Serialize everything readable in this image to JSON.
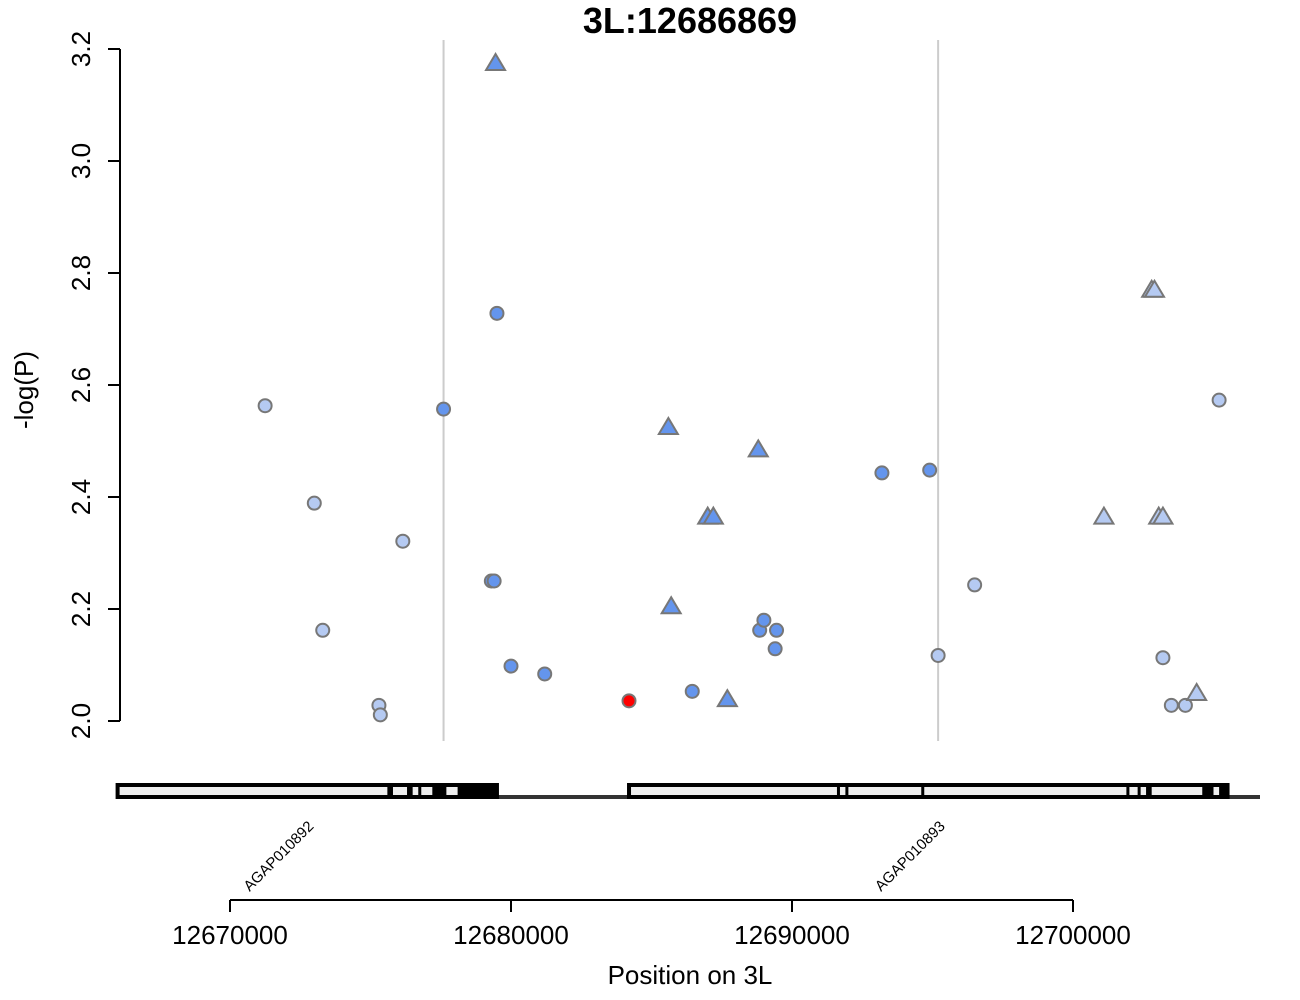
{
  "chart_data": {
    "type": "scatter",
    "title": "3L:12686869",
    "xlabel": "Position on 3L",
    "ylabel": "-log(P)",
    "xlim": [
      12665000,
      12708000
    ],
    "ylim": [
      2.0,
      3.2
    ],
    "x_ticks": [
      12670000,
      12680000,
      12690000,
      12700000
    ],
    "x_tick_labels": [
      "12670000",
      "12680000",
      "12690000",
      "12700000"
    ],
    "y_ticks": [
      2.0,
      2.2,
      2.4,
      2.6,
      2.8,
      3.0,
      3.2
    ],
    "y_tick_labels": [
      "2.0",
      "2.2",
      "2.4",
      "2.6",
      "2.8",
      "3.0",
      "3.2"
    ],
    "grid": false,
    "colors": {
      "dark_blue": "#6495ed",
      "light_blue": "#b5caf2",
      "lead": "#ff0000",
      "outline": "#777777"
    },
    "points": [
      {
        "x": 12671250,
        "y": 2.563,
        "shape": "circle",
        "color": "light_blue"
      },
      {
        "x": 12673000,
        "y": 2.389,
        "shape": "circle",
        "color": "light_blue"
      },
      {
        "x": 12673300,
        "y": 2.162,
        "shape": "circle",
        "color": "light_blue"
      },
      {
        "x": 12675300,
        "y": 2.028,
        "shape": "circle",
        "color": "light_blue"
      },
      {
        "x": 12675350,
        "y": 2.011,
        "shape": "circle",
        "color": "light_blue"
      },
      {
        "x": 12676150,
        "y": 2.321,
        "shape": "circle",
        "color": "light_blue"
      },
      {
        "x": 12677600,
        "y": 2.557,
        "shape": "circle",
        "color": "dark_blue"
      },
      {
        "x": 12679300,
        "y": 2.25,
        "shape": "circle",
        "color": "dark_blue"
      },
      {
        "x": 12679400,
        "y": 2.25,
        "shape": "circle",
        "color": "dark_blue"
      },
      {
        "x": 12679450,
        "y": 3.175,
        "shape": "triangle",
        "color": "dark_blue"
      },
      {
        "x": 12679500,
        "y": 2.728,
        "shape": "circle",
        "color": "dark_blue"
      },
      {
        "x": 12680000,
        "y": 2.098,
        "shape": "circle",
        "color": "dark_blue"
      },
      {
        "x": 12681200,
        "y": 2.084,
        "shape": "circle",
        "color": "dark_blue"
      },
      {
        "x": 12684200,
        "y": 2.036,
        "shape": "circle",
        "color": "lead"
      },
      {
        "x": 12685600,
        "y": 2.525,
        "shape": "triangle",
        "color": "dark_blue"
      },
      {
        "x": 12685700,
        "y": 2.205,
        "shape": "triangle",
        "color": "dark_blue"
      },
      {
        "x": 12686450,
        "y": 2.053,
        "shape": "circle",
        "color": "dark_blue"
      },
      {
        "x": 12687000,
        "y": 2.365,
        "shape": "triangle",
        "color": "dark_blue"
      },
      {
        "x": 12687200,
        "y": 2.365,
        "shape": "triangle",
        "color": "dark_blue"
      },
      {
        "x": 12687700,
        "y": 2.039,
        "shape": "triangle",
        "color": "dark_blue"
      },
      {
        "x": 12688800,
        "y": 2.485,
        "shape": "triangle",
        "color": "dark_blue"
      },
      {
        "x": 12688850,
        "y": 2.162,
        "shape": "circle",
        "color": "dark_blue"
      },
      {
        "x": 12689000,
        "y": 2.18,
        "shape": "circle",
        "color": "dark_blue"
      },
      {
        "x": 12689400,
        "y": 2.129,
        "shape": "circle",
        "color": "dark_blue"
      },
      {
        "x": 12689450,
        "y": 2.162,
        "shape": "circle",
        "color": "dark_blue"
      },
      {
        "x": 12693200,
        "y": 2.443,
        "shape": "circle",
        "color": "dark_blue"
      },
      {
        "x": 12694900,
        "y": 2.448,
        "shape": "circle",
        "color": "dark_blue"
      },
      {
        "x": 12695200,
        "y": 2.117,
        "shape": "circle",
        "color": "light_blue"
      },
      {
        "x": 12696500,
        "y": 2.243,
        "shape": "circle",
        "color": "light_blue"
      },
      {
        "x": 12701100,
        "y": 2.365,
        "shape": "triangle",
        "color": "light_blue"
      },
      {
        "x": 12702800,
        "y": 2.77,
        "shape": "triangle",
        "color": "light_blue"
      },
      {
        "x": 12702900,
        "y": 2.77,
        "shape": "triangle",
        "color": "light_blue"
      },
      {
        "x": 12703050,
        "y": 2.365,
        "shape": "triangle",
        "color": "light_blue"
      },
      {
        "x": 12703200,
        "y": 2.365,
        "shape": "triangle",
        "color": "light_blue"
      },
      {
        "x": 12703200,
        "y": 2.113,
        "shape": "circle",
        "color": "light_blue"
      },
      {
        "x": 12703500,
        "y": 2.028,
        "shape": "circle",
        "color": "light_blue"
      },
      {
        "x": 12704000,
        "y": 2.028,
        "shape": "circle",
        "color": "light_blue"
      },
      {
        "x": 12704400,
        "y": 2.05,
        "shape": "triangle",
        "color": "light_blue"
      },
      {
        "x": 12705200,
        "y": 2.573,
        "shape": "circle",
        "color": "light_blue"
      }
    ],
    "genes": [
      {
        "name": "AGAP010892",
        "start": 12666000,
        "end": 12679500,
        "exons": [
          [
            12675600,
            12675800
          ],
          [
            12676300,
            12676500
          ],
          [
            12676700,
            12676800
          ],
          [
            12677200,
            12677700
          ],
          [
            12678100,
            12679500
          ]
        ],
        "marker_line": 12677600
      },
      {
        "name": "AGAP010893",
        "start": 12684200,
        "end": 12705500,
        "exons": [
          [
            12691600,
            12691700
          ],
          [
            12691900,
            12692000
          ],
          [
            12694600,
            12694700
          ],
          [
            12701900,
            12702000
          ],
          [
            12702300,
            12702400
          ],
          [
            12702600,
            12702800
          ],
          [
            12704600,
            12705000
          ],
          [
            12705200,
            12705500
          ]
        ],
        "marker_line": 12695200
      }
    ]
  }
}
